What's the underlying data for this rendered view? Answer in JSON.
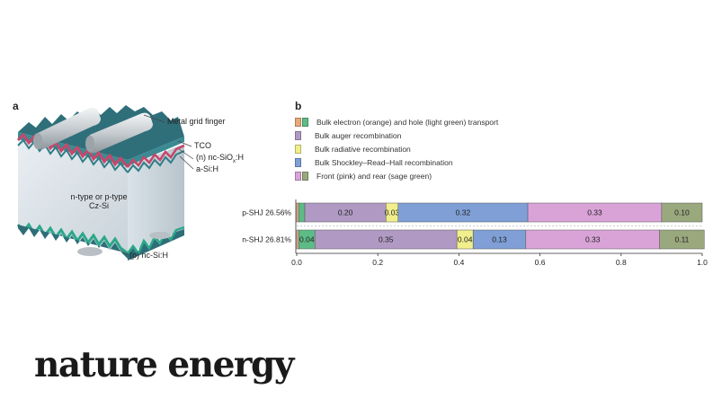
{
  "figure": {
    "panel_a_label": "a",
    "panel_b_label": "b",
    "callouts": {
      "metal_grid": "Metal grid finger",
      "tco": "TCO",
      "n_layer_prefix": "(n) nc-SiO",
      "n_layer_sub": "x",
      "n_layer_suffix": ":H",
      "a_si": "a-Si:H",
      "wafer_line1": "n-type or p-type",
      "wafer_line2": "Cz-Si",
      "p_layer": "(p) nc-Si:H"
    },
    "legend": [
      {
        "label": "Bulk electron (orange) and hole (light green) transport",
        "colors": [
          "#e8a878",
          "#5dbb86"
        ]
      },
      {
        "label": "Bulk auger recombination",
        "colors": [
          "#b09ac4"
        ]
      },
      {
        "label": "Bulk radiative recombination",
        "colors": [
          "#f1ef8c"
        ]
      },
      {
        "label": "Bulk Shockley–Read–Hall recombination",
        "colors": [
          "#7f9fd6"
        ]
      },
      {
        "label": "Front (pink) and rear (sage green)",
        "colors": [
          "#d9a3d8",
          "#9aa87e"
        ]
      }
    ],
    "brand": "nature energy"
  },
  "chart_data": {
    "type": "bar",
    "orientation": "horizontal",
    "stacked": true,
    "categories": [
      "p-SHJ 26.56%",
      "n-SHJ 26.81%"
    ],
    "segment_order": [
      "electron",
      "hole",
      "auger",
      "radiative",
      "srh",
      "front",
      "rear"
    ],
    "segment_colors": {
      "electron": "#e8a878",
      "hole": "#5dbb86",
      "auger": "#b09ac4",
      "radiative": "#f1ef8c",
      "srh": "#7f9fd6",
      "front": "#d9a3d8",
      "rear": "#9aa87e"
    },
    "rows": [
      {
        "category": "p-SHJ 26.56%",
        "values": {
          "electron": 0.005,
          "hole": 0.015,
          "auger": 0.2,
          "radiative": 0.03,
          "srh": 0.32,
          "front": 0.33,
          "rear": 0.1
        },
        "labels": {
          "auger": "0.20",
          "radiative": "0.03",
          "srh": "0.32",
          "front": "0.33",
          "rear": "0.10"
        }
      },
      {
        "category": "n-SHJ 26.81%",
        "values": {
          "electron": 0.005,
          "hole": 0.04,
          "auger": 0.35,
          "radiative": 0.04,
          "srh": 0.13,
          "front": 0.33,
          "rear": 0.11
        },
        "labels": {
          "hole": "0.04",
          "auger": "0.35",
          "radiative": "0.04",
          "srh": "0.13",
          "front": "0.33",
          "rear": "0.11"
        }
      }
    ],
    "xlim": [
      0,
      1.0
    ],
    "xticks": [
      "0.0",
      "0.2",
      "0.4",
      "0.6",
      "0.8",
      "1.0"
    ],
    "xtick_values": [
      0,
      0.2,
      0.4,
      0.6,
      0.8,
      1.0
    ]
  }
}
